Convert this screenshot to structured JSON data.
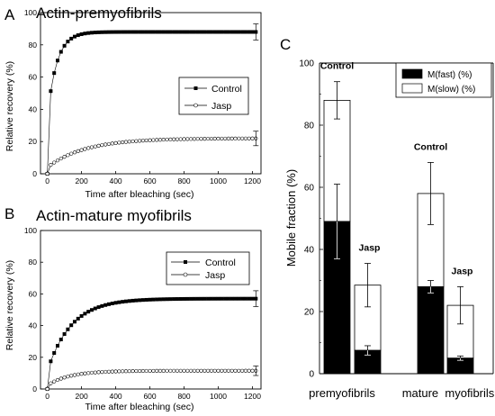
{
  "chart_data": [
    {
      "panel": "A",
      "type": "line",
      "title": "Actin-premyofibrils",
      "xlabel": "Time after bleaching (sec)",
      "ylabel": "Relative recovery (%)",
      "xlim": [
        -40,
        1250
      ],
      "ylim": [
        0,
        100
      ],
      "xticks": [
        0,
        200,
        400,
        600,
        800,
        1000,
        1200
      ],
      "yticks": [
        0,
        20,
        40,
        60,
        80,
        100
      ],
      "legend": "inside-right",
      "series": [
        {
          "name": "Control",
          "marker": "filled-square",
          "a": 88,
          "tau": 55,
          "jump": 0.4,
          "final_error": 5
        },
        {
          "name": "Jasp",
          "marker": "open-circle",
          "a": 22,
          "tau": 220,
          "jump": 0.18,
          "final_error": 4.5
        }
      ]
    },
    {
      "panel": "B",
      "type": "line",
      "title": "Actin-mature myofibrils",
      "xlabel": "Time after bleaching (sec)",
      "ylabel": "Relative recovery (%)",
      "xlim": [
        -40,
        1250
      ],
      "ylim": [
        0,
        100
      ],
      "xticks": [
        0,
        200,
        400,
        600,
        800,
        1000,
        1200
      ],
      "yticks": [
        0,
        20,
        40,
        60,
        80,
        100
      ],
      "legend": "inside-right",
      "series": [
        {
          "name": "Control",
          "marker": "filled-square",
          "a": 57,
          "tau": 140,
          "jump": 0.2,
          "final_error": 5
        },
        {
          "name": "Jasp",
          "marker": "open-circle",
          "a": 11.5,
          "tau": 130,
          "jump": 0.2,
          "final_error": 3
        }
      ]
    },
    {
      "panel": "C",
      "type": "bar",
      "stacked": true,
      "ylabel": "Mobile fraction (%)",
      "ylim": [
        0,
        100
      ],
      "yticks": [
        0,
        20,
        40,
        60,
        80,
        100
      ],
      "legend": "top-right",
      "groups": [
        "premyofibrils",
        "mature  myofibrils"
      ],
      "bars": [
        {
          "group": "premyofibrils",
          "label": "Control",
          "fast": 49,
          "fast_err": 12,
          "total": 88,
          "total_err": 6
        },
        {
          "group": "premyofibrils",
          "label": "Jasp",
          "fast": 7.5,
          "fast_err": 1.5,
          "total": 28.5,
          "total_err": 7
        },
        {
          "group": "mature  myofibrils",
          "label": "Control",
          "fast": 28,
          "fast_err": 2,
          "total": 58,
          "total_err": 10
        },
        {
          "group": "mature  myofibrils",
          "label": "Jasp",
          "fast": 5,
          "fast_err": 0.7,
          "total": 22,
          "total_err": 6
        }
      ],
      "series": [
        {
          "name": "M(fast) (%)",
          "color": "#000000"
        },
        {
          "name": "M(slow) (%)",
          "color": "#ffffff"
        }
      ]
    }
  ]
}
